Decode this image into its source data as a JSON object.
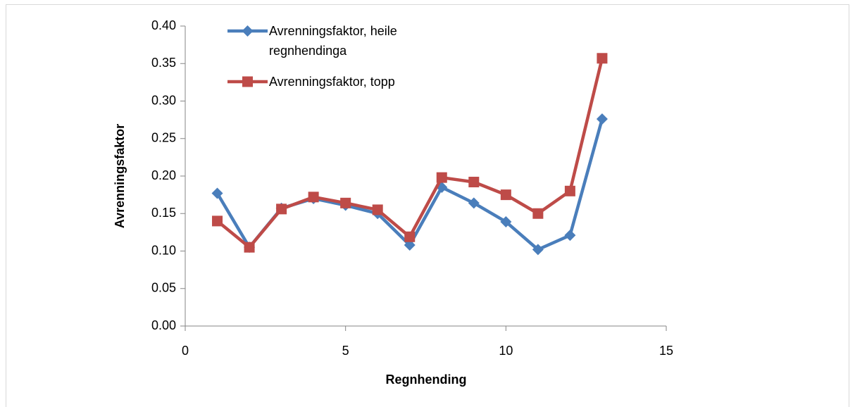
{
  "chart_data": {
    "type": "line",
    "x_label": "Regnhending",
    "y_label": "Avrenningsfaktor",
    "x": [
      1,
      2,
      3,
      4,
      5,
      6,
      7,
      8,
      9,
      10,
      11,
      12,
      13
    ],
    "series": [
      {
        "name": "Avrenningsfaktor, heile regnhendinga",
        "color": "#4a7ebb",
        "marker": "diamond",
        "values": [
          0.177,
          0.105,
          0.157,
          0.17,
          0.161,
          0.15,
          0.108,
          0.185,
          0.164,
          0.139,
          0.102,
          0.121,
          0.276
        ]
      },
      {
        "name": "Avrenningsfaktor, topp",
        "color": "#be4b48",
        "marker": "square",
        "values": [
          0.14,
          0.105,
          0.156,
          0.172,
          0.164,
          0.155,
          0.119,
          0.198,
          0.192,
          0.175,
          0.15,
          0.18,
          0.357
        ]
      }
    ],
    "xlim": [
      0,
      15
    ],
    "xticks": [
      0,
      5,
      10,
      15
    ],
    "ylim": [
      0,
      0.4
    ],
    "yticks": [
      {
        "value": 0,
        "label": "0.00"
      },
      {
        "value": 0.05,
        "label": "0.05"
      },
      {
        "value": 0.1,
        "label": "0.10"
      },
      {
        "value": 0.15,
        "label": "0.15"
      },
      {
        "value": 0.2,
        "label": "0.20"
      },
      {
        "value": 0.25,
        "label": "0.25"
      },
      {
        "value": 0.3,
        "label": "0.30"
      },
      {
        "value": 0.35,
        "label": "0.35"
      },
      {
        "value": 0.4,
        "label": "0.40"
      }
    ],
    "grid": false,
    "legend": "top-left"
  }
}
